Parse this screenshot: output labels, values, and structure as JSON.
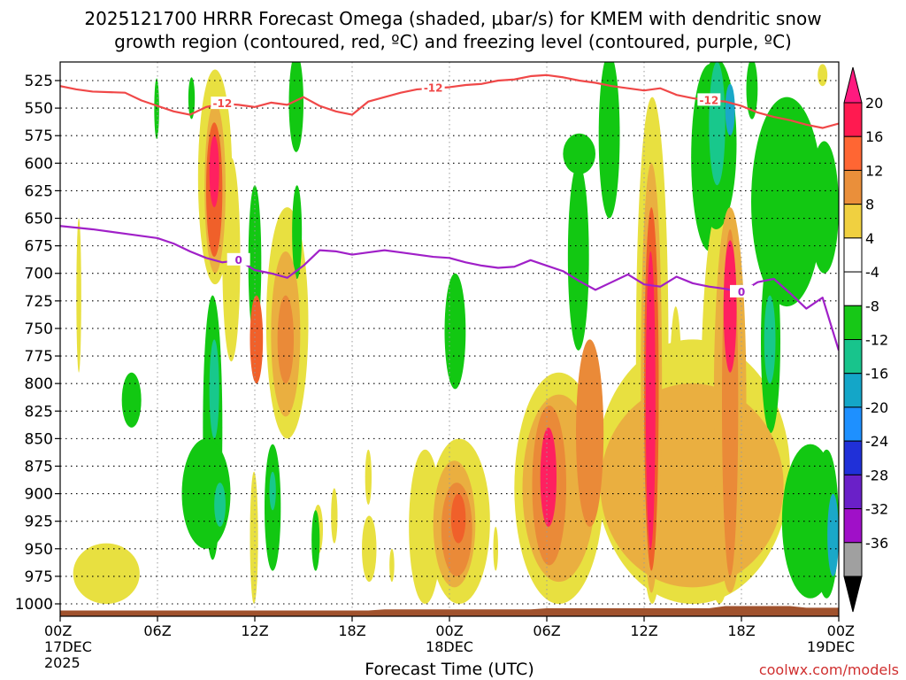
{
  "chart_data": {
    "type": "heatmap",
    "title_line1": "2025121700 HRRR Forecast Omega (shaded, μbar/s) for KMEM with dendritic snow",
    "title_line2": "growth region (contoured, red, ºC) and freezing level (contoured, purple, ºC)",
    "xlabel": "Forecast Time (UTC)",
    "watermark": "coolwx.com/models",
    "x_range_hours": [
      0,
      48
    ],
    "y_range_mb": [
      1010,
      508
    ],
    "y_ticks": [
      "525",
      "550",
      "575",
      "600",
      "625",
      "650",
      "675",
      "700",
      "725",
      "750",
      "775",
      "800",
      "825",
      "850",
      "875",
      "900",
      "925",
      "950",
      "975",
      "1000"
    ],
    "x_ticks": [
      {
        "hour": 0,
        "label": "00Z",
        "sub1": "17DEC",
        "sub2": "2025"
      },
      {
        "hour": 6,
        "label": "06Z"
      },
      {
        "hour": 12,
        "label": "12Z"
      },
      {
        "hour": 18,
        "label": "18Z"
      },
      {
        "hour": 24,
        "label": "00Z",
        "sub1": "18DEC"
      },
      {
        "hour": 30,
        "label": "06Z"
      },
      {
        "hour": 36,
        "label": "12Z"
      },
      {
        "hour": 42,
        "label": "18Z"
      },
      {
        "hour": 48,
        "label": "00Z",
        "sub1": "19DEC"
      }
    ],
    "colorbar": {
      "labels": [
        "20",
        "16",
        "12",
        "8",
        "4",
        "-4",
        "-8",
        "-12",
        "-16",
        "-20",
        "-24",
        "-28",
        "-32",
        "-36"
      ],
      "bins": [
        {
          "lo": 16,
          "hi": 20,
          "color": "#ff1a50"
        },
        {
          "lo": 12,
          "hi": 16,
          "color": "#ff6633"
        },
        {
          "lo": 8,
          "hi": 12,
          "color": "#ea8f3a"
        },
        {
          "lo": 4,
          "hi": 8,
          "color": "#f0d040"
        },
        {
          "lo": 0,
          "hi": 4,
          "color": "#ffffff"
        },
        {
          "lo": -4,
          "hi": 0,
          "color": "#ffffff"
        },
        {
          "lo": -8,
          "hi": -4,
          "color": "#17c817"
        },
        {
          "lo": -12,
          "hi": -8,
          "color": "#18c48c"
        },
        {
          "lo": -16,
          "hi": -12,
          "color": "#14a6c8"
        },
        {
          "lo": -20,
          "hi": -16,
          "color": "#1e90ff"
        },
        {
          "lo": -24,
          "hi": -20,
          "color": "#2030d8"
        },
        {
          "lo": -28,
          "hi": -24,
          "color": "#6a20c8"
        },
        {
          "lo": -32,
          "hi": -28,
          "color": "#a010c8"
        },
        {
          "lo": -36,
          "hi": -32,
          "color": "#a0a0a0"
        }
      ],
      "top_color": "#ff1a7f",
      "bottom_color": "#000000"
    },
    "shading_colors": {
      "pos4": "#e8e040",
      "pos8": "#eaaf40",
      "pos12": "#ea8a38",
      "pos16": "#f0602a",
      "pos20": "#ff2060",
      "neg4": "#12c812",
      "neg8": "#18c88c",
      "neg12": "#1aa8c8"
    },
    "ground_color": "#a0522d",
    "contour_minus12": {
      "label": "-12",
      "color": "#f04848",
      "points": [
        [
          0,
          530
        ],
        [
          1,
          533
        ],
        [
          2,
          535
        ],
        [
          4,
          536
        ],
        [
          5,
          543
        ],
        [
          6,
          548
        ],
        [
          7,
          553
        ],
        [
          8,
          556
        ],
        [
          9,
          549
        ],
        [
          10,
          546
        ],
        [
          11,
          547
        ],
        [
          12,
          549
        ],
        [
          13,
          545
        ],
        [
          14,
          547
        ],
        [
          15,
          540
        ],
        [
          16,
          548
        ],
        [
          17,
          553
        ],
        [
          18,
          556
        ],
        [
          19,
          544
        ],
        [
          20,
          540
        ],
        [
          21,
          536
        ],
        [
          22,
          533
        ],
        [
          23,
          532
        ],
        [
          24,
          531
        ],
        [
          25,
          529
        ],
        [
          26,
          528
        ],
        [
          27,
          525
        ],
        [
          28,
          524
        ],
        [
          29,
          521
        ],
        [
          30,
          520
        ],
        [
          31,
          522
        ],
        [
          32,
          525
        ],
        [
          33,
          527
        ],
        [
          34,
          530
        ],
        [
          35,
          532
        ],
        [
          36,
          534
        ],
        [
          37,
          532
        ],
        [
          38,
          538
        ],
        [
          39,
          541
        ],
        [
          40,
          543
        ],
        [
          41,
          544
        ],
        [
          42,
          548
        ],
        [
          43,
          554
        ],
        [
          44,
          558
        ],
        [
          45,
          561
        ],
        [
          46,
          565
        ],
        [
          47,
          568
        ],
        [
          48,
          564
        ]
      ]
    },
    "contour_zero": {
      "label": "0",
      "color": "#a020c8",
      "points": [
        [
          0,
          657
        ],
        [
          2,
          660
        ],
        [
          4,
          664
        ],
        [
          5,
          666
        ],
        [
          6,
          668
        ],
        [
          7,
          673
        ],
        [
          8,
          680
        ],
        [
          9,
          686
        ],
        [
          10,
          690
        ],
        [
          11,
          688
        ],
        [
          12,
          697
        ],
        [
          13,
          700
        ],
        [
          14,
          704
        ],
        [
          15,
          693
        ],
        [
          16,
          679
        ],
        [
          17,
          680
        ],
        [
          18,
          683
        ],
        [
          19,
          681
        ],
        [
          20,
          679
        ],
        [
          21,
          681
        ],
        [
          22,
          683
        ],
        [
          23,
          685
        ],
        [
          24,
          686
        ],
        [
          25,
          690
        ],
        [
          26,
          693
        ],
        [
          27,
          695
        ],
        [
          28,
          694
        ],
        [
          29,
          688
        ],
        [
          30,
          693
        ],
        [
          31,
          698
        ],
        [
          32,
          707
        ],
        [
          33,
          715
        ],
        [
          34,
          708
        ],
        [
          35,
          701
        ],
        [
          36,
          710
        ],
        [
          37,
          712
        ],
        [
          38,
          703
        ],
        [
          39,
          709
        ],
        [
          40,
          712
        ],
        [
          41,
          714
        ],
        [
          42,
          717
        ],
        [
          43,
          708
        ],
        [
          44,
          705
        ],
        [
          45,
          718
        ],
        [
          46,
          732
        ],
        [
          47,
          722
        ],
        [
          48,
          770
        ]
      ]
    },
    "omega_regions": [
      {
        "t0": 5.8,
        "t1": 6.1,
        "p0": 523,
        "p1": 578,
        "v": -5
      },
      {
        "t0": 7.9,
        "t1": 8.3,
        "p0": 522,
        "p1": 560,
        "v": -5
      },
      {
        "t0": 8.5,
        "t1": 10.6,
        "p0": 515,
        "p1": 710,
        "v": 5
      },
      {
        "t0": 8.9,
        "t1": 10.2,
        "p0": 545,
        "p1": 700,
        "v": 10
      },
      {
        "t0": 9.0,
        "t1": 10.0,
        "p0": 563,
        "p1": 685,
        "v": 14
      },
      {
        "t0": 9.2,
        "t1": 9.8,
        "p0": 575,
        "p1": 640,
        "v": 20
      },
      {
        "t0": 10.0,
        "t1": 11.1,
        "p0": 595,
        "p1": 780,
        "v": 5
      },
      {
        "t0": 1.0,
        "t1": 1.3,
        "p0": 650,
        "p1": 790,
        "v": 5
      },
      {
        "t0": 8.8,
        "t1": 10.0,
        "p0": 720,
        "p1": 960,
        "v": -5
      },
      {
        "t0": 9.2,
        "t1": 9.8,
        "p0": 760,
        "p1": 850,
        "v": -10
      },
      {
        "t0": 7.5,
        "t1": 10.5,
        "p0": 850,
        "p1": 950,
        "v": -5
      },
      {
        "t0": 9.5,
        "t1": 10.2,
        "p0": 890,
        "p1": 930,
        "v": -10
      },
      {
        "t0": 3.8,
        "t1": 5.0,
        "p0": 790,
        "p1": 840,
        "v": -5
      },
      {
        "t0": 11.6,
        "t1": 12.4,
        "p0": 620,
        "p1": 760,
        "v": -5
      },
      {
        "t0": 12.7,
        "t1": 15.3,
        "p0": 640,
        "p1": 850,
        "v": 5
      },
      {
        "t0": 13.0,
        "t1": 14.8,
        "p0": 680,
        "p1": 830,
        "v": 8
      },
      {
        "t0": 13.4,
        "t1": 14.4,
        "p0": 720,
        "p1": 800,
        "v": 12
      },
      {
        "t0": 11.7,
        "t1": 12.5,
        "p0": 720,
        "p1": 800,
        "v": 14
      },
      {
        "t0": 12.6,
        "t1": 13.6,
        "p0": 855,
        "p1": 970,
        "v": -5
      },
      {
        "t0": 12.9,
        "t1": 13.3,
        "p0": 880,
        "p1": 915,
        "v": -10
      },
      {
        "t0": 11.7,
        "t1": 12.2,
        "p0": 880,
        "p1": 1000,
        "v": 5
      },
      {
        "t0": 14.1,
        "t1": 15.0,
        "p0": 500,
        "p1": 590,
        "v": -5
      },
      {
        "t0": 14.3,
        "t1": 14.9,
        "p0": 620,
        "p1": 705,
        "v": -5
      },
      {
        "t0": 0.8,
        "t1": 4.9,
        "p0": 945,
        "p1": 1000,
        "v": 5
      },
      {
        "t0": 15.6,
        "t1": 16.2,
        "p0": 910,
        "p1": 955,
        "v": 5
      },
      {
        "t0": 15.5,
        "t1": 16.0,
        "p0": 915,
        "p1": 970,
        "v": -5
      },
      {
        "t0": 16.7,
        "t1": 17.1,
        "p0": 895,
        "p1": 945,
        "v": 5
      },
      {
        "t0": 18.8,
        "t1": 19.2,
        "p0": 860,
        "p1": 910,
        "v": 5
      },
      {
        "t0": 18.6,
        "t1": 19.5,
        "p0": 920,
        "p1": 980,
        "v": 5
      },
      {
        "t0": 20.3,
        "t1": 20.6,
        "p0": 950,
        "p1": 980,
        "v": 5
      },
      {
        "t0": 21.5,
        "t1": 23.5,
        "p0": 860,
        "p1": 1000,
        "v": 5
      },
      {
        "t0": 23.7,
        "t1": 25.0,
        "p0": 700,
        "p1": 805,
        "v": -5
      },
      {
        "t0": 22.7,
        "t1": 26.5,
        "p0": 850,
        "p1": 1000,
        "v": 5
      },
      {
        "t0": 23.0,
        "t1": 25.6,
        "p0": 870,
        "p1": 985,
        "v": 8
      },
      {
        "t0": 23.5,
        "t1": 25.4,
        "p0": 890,
        "p1": 975,
        "v": 12
      },
      {
        "t0": 24.1,
        "t1": 25.0,
        "p0": 900,
        "p1": 945,
        "v": 16
      },
      {
        "t0": 26.7,
        "t1": 27.0,
        "p0": 930,
        "p1": 970,
        "v": 5
      },
      {
        "t0": 28.0,
        "t1": 33.5,
        "p0": 790,
        "p1": 1000,
        "v": 5
      },
      {
        "t0": 28.5,
        "t1": 33.0,
        "p0": 810,
        "p1": 980,
        "v": 8
      },
      {
        "t0": 29.1,
        "t1": 31.2,
        "p0": 820,
        "p1": 965,
        "v": 12
      },
      {
        "t0": 29.6,
        "t1": 30.6,
        "p0": 840,
        "p1": 930,
        "v": 20
      },
      {
        "t0": 31.8,
        "t1": 33.5,
        "p0": 760,
        "p1": 930,
        "v": 12
      },
      {
        "t0": 33.0,
        "t1": 45.0,
        "p0": 760,
        "p1": 1000,
        "v": 5
      },
      {
        "t0": 33.3,
        "t1": 44.6,
        "p0": 800,
        "p1": 985,
        "v": 8
      },
      {
        "t0": 31.0,
        "t1": 33.0,
        "p0": 573,
        "p1": 610,
        "v": -5
      },
      {
        "t0": 31.3,
        "t1": 32.6,
        "p0": 600,
        "p1": 770,
        "v": -5
      },
      {
        "t0": 33.2,
        "t1": 34.5,
        "p0": 500,
        "p1": 650,
        "v": -5
      },
      {
        "t0": 35.5,
        "t1": 37.5,
        "p0": 540,
        "p1": 1000,
        "v": 5
      },
      {
        "t0": 35.8,
        "t1": 37.1,
        "p0": 600,
        "p1": 990,
        "v": 8
      },
      {
        "t0": 36.0,
        "t1": 36.9,
        "p0": 640,
        "p1": 970,
        "v": 14
      },
      {
        "t0": 36.1,
        "t1": 36.7,
        "p0": 680,
        "p1": 950,
        "v": 20
      },
      {
        "t0": 37.5,
        "t1": 38.4,
        "p0": 730,
        "p1": 980,
        "v": 5
      },
      {
        "t0": 37.9,
        "t1": 38.1,
        "p0": 870,
        "p1": 920,
        "v": 5
      },
      {
        "t0": 38.9,
        "t1": 41.2,
        "p0": 510,
        "p1": 680,
        "v": -5
      },
      {
        "t0": 39.5,
        "t1": 41.8,
        "p0": 640,
        "p1": 1000,
        "v": 5
      },
      {
        "t0": 40.3,
        "t1": 42.3,
        "p0": 640,
        "p1": 990,
        "v": 8
      },
      {
        "t0": 40.8,
        "t1": 41.8,
        "p0": 660,
        "p1": 975,
        "v": 12
      },
      {
        "t0": 40.9,
        "t1": 41.7,
        "p0": 670,
        "p1": 790,
        "v": 20
      },
      {
        "t0": 39.2,
        "t1": 41.7,
        "p0": 505,
        "p1": 660,
        "v": -5
      },
      {
        "t0": 40.0,
        "t1": 41.0,
        "p0": 508,
        "p1": 620,
        "v": -10
      },
      {
        "t0": 41.0,
        "t1": 41.6,
        "p0": 528,
        "p1": 575,
        "v": -14
      },
      {
        "t0": 42.6,
        "t1": 47.0,
        "p0": 540,
        "p1": 730,
        "v": -5
      },
      {
        "t0": 43.2,
        "t1": 44.4,
        "p0": 680,
        "p1": 845,
        "v": -5
      },
      {
        "t0": 43.4,
        "t1": 44.1,
        "p0": 720,
        "p1": 800,
        "v": -10
      },
      {
        "t0": 42.3,
        "t1": 43.0,
        "p0": 505,
        "p1": 560,
        "v": -5
      },
      {
        "t0": 46.2,
        "t1": 48.0,
        "p0": 580,
        "p1": 700,
        "v": -5
      },
      {
        "t0": 44.5,
        "t1": 48.0,
        "p0": 855,
        "p1": 995,
        "v": -5
      },
      {
        "t0": 46.5,
        "t1": 48.0,
        "p0": 860,
        "p1": 995,
        "v": -5
      },
      {
        "t0": 47.3,
        "t1": 48.0,
        "p0": 900,
        "p1": 975,
        "v": -12
      },
      {
        "t0": 46.7,
        "t1": 47.3,
        "p0": 510,
        "p1": 530,
        "v": 5
      }
    ]
  }
}
